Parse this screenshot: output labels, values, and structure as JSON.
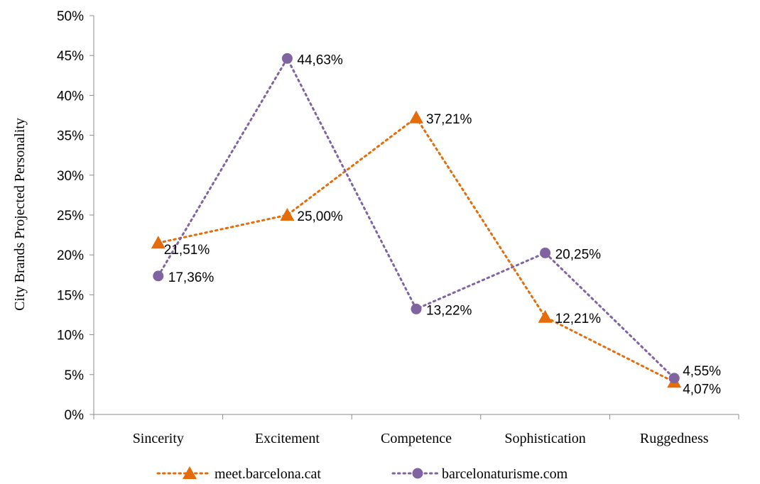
{
  "chart_data": {
    "type": "line",
    "title": "",
    "xlabel": "",
    "ylabel": "City Brands Projected Personality",
    "ylim": [
      0,
      50
    ],
    "yticks": [
      "0%",
      "5%",
      "10%",
      "15%",
      "20%",
      "25%",
      "30%",
      "35%",
      "40%",
      "45%",
      "50%"
    ],
    "categories": [
      "Sincerity",
      "Excitement",
      "Competence",
      "Sophistication",
      "Ruggedness"
    ],
    "grid": false,
    "legend": "bottom",
    "series": [
      {
        "name": "meet.barcelona.cat",
        "marker": "triangle",
        "color": "#E46C0A",
        "values": [
          21.51,
          25.0,
          37.21,
          12.21,
          4.07
        ],
        "labels": [
          "21,51%",
          "25,00%",
          "37,21%",
          "12,21%",
          "4,07%"
        ]
      },
      {
        "name": "barcelonaturisme.com",
        "marker": "circle",
        "color": "#8064A2",
        "values": [
          17.36,
          44.63,
          13.22,
          20.25,
          4.55
        ],
        "labels": [
          "17,36%",
          "44,63%",
          "13,22%",
          "20,25%",
          "4,55%"
        ]
      }
    ]
  }
}
